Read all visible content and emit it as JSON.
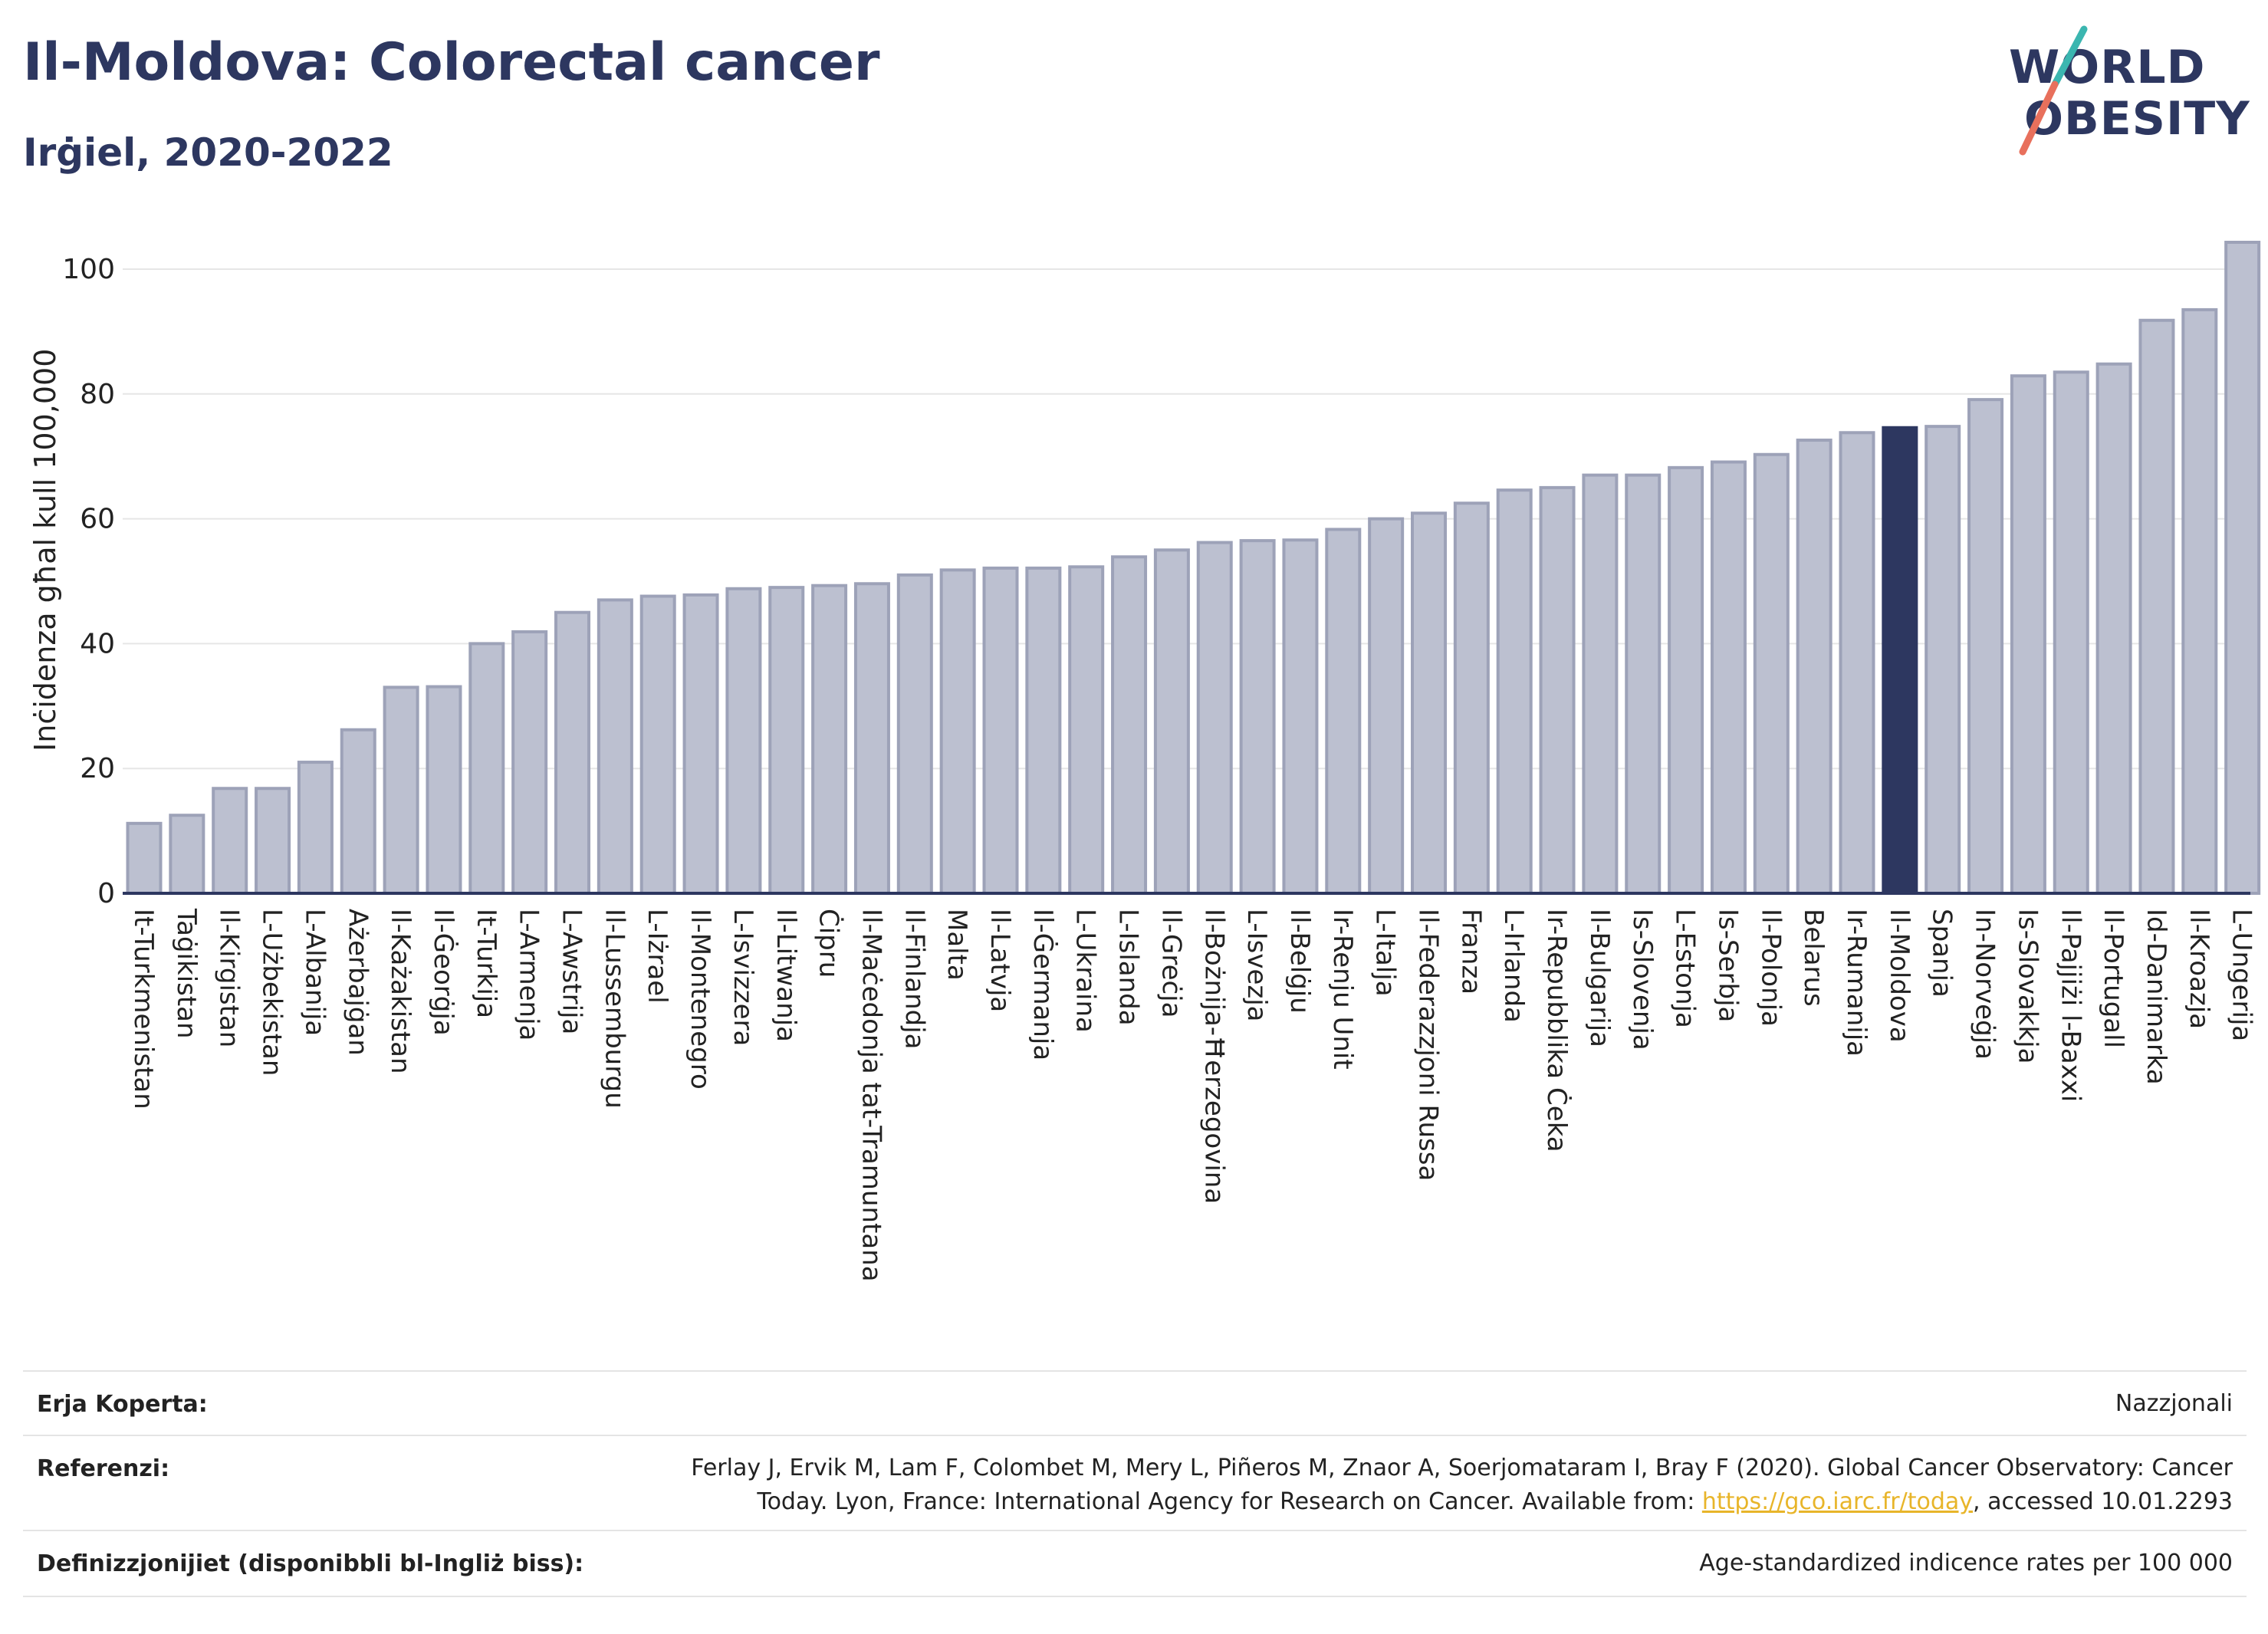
{
  "title": "Il-Moldova: Colorectal cancer",
  "subtitle": "Irġiel, 2020-2022",
  "logo": {
    "line1": "WORLD",
    "line2": "OBESITY",
    "colors": {
      "text": "#2d3760",
      "slash_top": "#3bb6b0",
      "slash_bottom": "#e8705c"
    }
  },
  "colors": {
    "bar": "#bcc0d0",
    "bar_edge": "#9da2b8",
    "highlight": "#2d3760",
    "grid": "#e6e6e6",
    "axis": "#2d3760"
  },
  "chart_data": {
    "type": "bar",
    "ylabel": "Inċidenza għal kull 100,000",
    "ylim": [
      0,
      105
    ],
    "yticks": [
      0,
      20,
      40,
      60,
      80,
      100
    ],
    "grid": true,
    "highlight": "Il-Moldova",
    "categories": [
      "It-Turkmenistan",
      "Taġikistan",
      "Il-Kirgistan",
      "L-Użbekistan",
      "L-Albanija",
      "Ażerbajġan",
      "Il-Każakistan",
      "Il-Ġeorġja",
      "It-Turkija",
      "L-Armenja",
      "L-Awstrija",
      "Il-Lussemburgu",
      "L-Iżrael",
      "Il-Montenegro",
      "L-Isvizzera",
      "Il-Litwanja",
      "Ċipru",
      "Il-Maċedonja tat-Tramuntana",
      "Il-Finlandja",
      "Malta",
      "Il-Latvja",
      "Il-Ġermanja",
      "L-Ukraina",
      "L-Islanda",
      "Il-Greċja",
      "Il-Bożnija-Ħerzegovina",
      "L-Isvezja",
      "Il-Belġju",
      "Ir-Renju Unit",
      "L-Italja",
      "Il-Federazzjoni Russa",
      "Franza",
      "L-Irlanda",
      "Ir-Repubblika Ċeka",
      "Il-Bulgarija",
      "Is-Slovenja",
      "L-Estonja",
      "Is-Serbja",
      "Il-Polonja",
      "Belarus",
      "Ir-Rumanija",
      "Il-Moldova",
      "Spanja",
      "In-Norveġja",
      "Is-Slovakkja",
      "Il-Pajjiżi l-Baxxi",
      "Il-Portugall",
      "Id-Danimarka",
      "Il-Kroazja",
      "L-Ungerija"
    ],
    "values": [
      11.2,
      12.5,
      16.8,
      16.8,
      21.0,
      26.2,
      33.0,
      33.1,
      40.0,
      41.9,
      45.0,
      47.0,
      47.6,
      47.8,
      48.8,
      49.0,
      49.3,
      49.6,
      51.0,
      51.8,
      52.1,
      52.1,
      52.3,
      53.9,
      55.0,
      56.2,
      56.5,
      56.6,
      58.3,
      60.0,
      60.9,
      62.5,
      64.6,
      65.0,
      67.0,
      67.0,
      68.2,
      69.1,
      70.3,
      72.6,
      73.8,
      74.6,
      74.8,
      79.1,
      82.9,
      83.5,
      84.8,
      91.8,
      93.5,
      104.3
    ]
  },
  "info": {
    "coverage_label": "Erja Koperta:",
    "coverage_value": "Nazzjonali",
    "references_label": "Referenzi:",
    "references_line1": "Ferlay J, Ervik M, Lam F, Colombet M, Mery L, Piñeros M, Znaor A, Soerjomataram I, Bray F (2020). Global Cancer Observatory: Cancer",
    "references_line2_pre": "Today. Lyon, France: International Agency for Research on Cancer. Available from: ",
    "references_link": "https://gco.iarc.fr/today",
    "references_line2_post": ", accessed 10.01.2293",
    "definitions_label": "Definizzjonijiet (disponibbli bl-Ingliż biss):",
    "definitions_value": "Age-standardized indicence rates per 100 000"
  }
}
